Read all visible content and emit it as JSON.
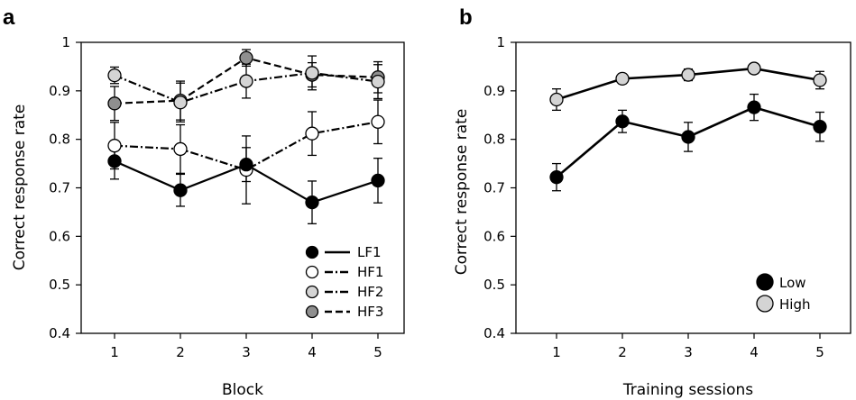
{
  "chart_data": [
    {
      "type": "line",
      "panel_label": "a",
      "xlabel": "Block",
      "ylabel": "Correct response rate",
      "categories": [
        "1",
        "2",
        "3",
        "4",
        "5"
      ],
      "x": [
        1,
        2,
        3,
        4,
        5
      ],
      "xlim": [
        0.5,
        5.5
      ],
      "ylim": [
        0.4,
        1.0
      ],
      "yticks": [
        "0.4",
        "0.5",
        "0.6",
        "0.7",
        "0.8",
        "0.9",
        "1"
      ],
      "grid": false,
      "legend_position": "bottom-right",
      "series": [
        {
          "name": "LF1",
          "marker": "filled-black",
          "line": "solid",
          "values": [
            0.755,
            0.695,
            0.748,
            0.67,
            0.715
          ],
          "errors": [
            0.037,
            0.033,
            0.035,
            0.044,
            0.046
          ]
        },
        {
          "name": "HF1",
          "marker": "open-white",
          "line": "dash-dot",
          "values": [
            0.787,
            0.78,
            0.737,
            0.812,
            0.836
          ],
          "errors": [
            0.048,
            0.05,
            0.07,
            0.045,
            0.045
          ]
        },
        {
          "name": "HF2",
          "marker": "light-gray",
          "line": "dash-dot",
          "values": [
            0.932,
            0.876,
            0.92,
            0.937,
            0.919
          ],
          "errors": [
            0.017,
            0.04,
            0.035,
            0.035,
            0.035
          ]
        },
        {
          "name": "HF3",
          "marker": "dark-gray",
          "line": "dashed",
          "values": [
            0.874,
            0.88,
            0.968,
            0.933,
            0.928
          ],
          "errors": [
            0.035,
            0.04,
            0.017,
            0.025,
            0.032
          ]
        }
      ]
    },
    {
      "type": "line",
      "panel_label": "b",
      "xlabel": "Training sessions",
      "ylabel": "Correct response rate",
      "categories": [
        "1",
        "2",
        "3",
        "4",
        "5"
      ],
      "x": [
        1,
        2,
        3,
        4,
        5
      ],
      "xlim": [
        0.5,
        5.5
      ],
      "ylim": [
        0.4,
        1.0
      ],
      "yticks": [
        "0.4",
        "0.5",
        "0.6",
        "0.7",
        "0.8",
        "0.9",
        "1"
      ],
      "grid": false,
      "legend_position": "bottom-right",
      "series": [
        {
          "name": "Low",
          "marker": "filled-black",
          "line": "solid",
          "values": [
            0.722,
            0.837,
            0.805,
            0.866,
            0.826
          ],
          "errors": [
            0.028,
            0.023,
            0.03,
            0.027,
            0.03
          ]
        },
        {
          "name": "High",
          "marker": "light-gray",
          "line": "solid",
          "values": [
            0.882,
            0.925,
            0.933,
            0.946,
            0.922
          ],
          "errors": [
            0.022,
            0.01,
            0.012,
            0.01,
            0.018
          ]
        }
      ]
    }
  ],
  "styles": {
    "filled-black": "#000000",
    "open-white": "#ffffff",
    "light-gray": "#d4d4d4",
    "dark-gray": "#8f8f8f"
  }
}
